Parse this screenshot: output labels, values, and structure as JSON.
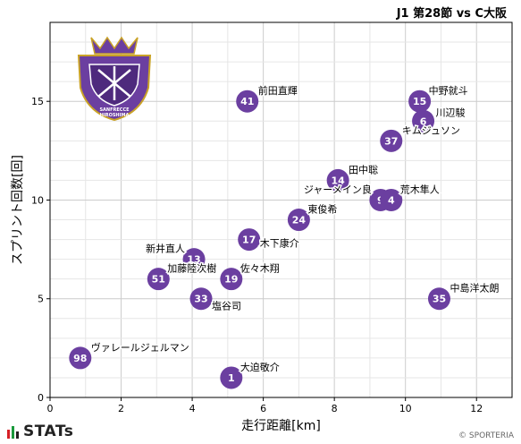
{
  "header": {
    "match_title": "J1 第28節 vs C大阪"
  },
  "footer": {
    "brand": "STATs",
    "copyright": "© SPORTERIA"
  },
  "badge": {
    "text_top": "SANFRECCE",
    "text_bottom": "HIROSHIMA",
    "color": "#6b3fa0"
  },
  "colors": {
    "point": "#6b3fa0",
    "point_text": "#ffffff",
    "grid": "#cccccc",
    "minor_grid": "#e6e6e6"
  },
  "chart_data": {
    "type": "scatter",
    "xlabel": "走行距離[km]",
    "ylabel": "スプリント回数[回]",
    "xlim": [
      0,
      13
    ],
    "ylim": [
      0,
      19
    ],
    "xticks": [
      0,
      2,
      4,
      6,
      8,
      10,
      12
    ],
    "yticks": [
      0,
      5,
      10,
      15
    ],
    "grid": true,
    "points": [
      {
        "number": "41",
        "name": "前田直輝",
        "x": 5.55,
        "y": 15.0
      },
      {
        "number": "15",
        "name": "中野就斗",
        "x": 10.4,
        "y": 15.0
      },
      {
        "number": "6",
        "name": "川辺駿",
        "x": 10.5,
        "y": 14.0
      },
      {
        "number": "37",
        "name": "キムジュソン",
        "x": 9.6,
        "y": 13.0
      },
      {
        "number": "14",
        "name": "田中聡",
        "x": 8.1,
        "y": 11.0
      },
      {
        "number": "9",
        "name": "ジャーメイン良",
        "x": 9.3,
        "y": 10.0
      },
      {
        "number": "4",
        "name": "荒木隼人",
        "x": 9.6,
        "y": 10.0
      },
      {
        "number": "24",
        "name": "東俊希",
        "x": 7.0,
        "y": 9.0
      },
      {
        "number": "17",
        "name": "木下康介",
        "x": 5.6,
        "y": 8.0
      },
      {
        "number": "13",
        "name": "新井直人",
        "x": 4.05,
        "y": 7.0
      },
      {
        "number": "51",
        "name": "加藤陸次樹",
        "x": 3.05,
        "y": 6.0
      },
      {
        "number": "19",
        "name": "佐々木翔",
        "x": 5.1,
        "y": 6.0
      },
      {
        "number": "33",
        "name": "塩谷司",
        "x": 4.25,
        "y": 5.0
      },
      {
        "number": "35",
        "name": "中島洋太朗",
        "x": 10.95,
        "y": 5.0
      },
      {
        "number": "98",
        "name": "ヴァレールジェルマン",
        "x": 0.85,
        "y": 2.0
      },
      {
        "number": "1",
        "name": "大迫敬介",
        "x": 5.1,
        "y": 1.0
      }
    ]
  }
}
